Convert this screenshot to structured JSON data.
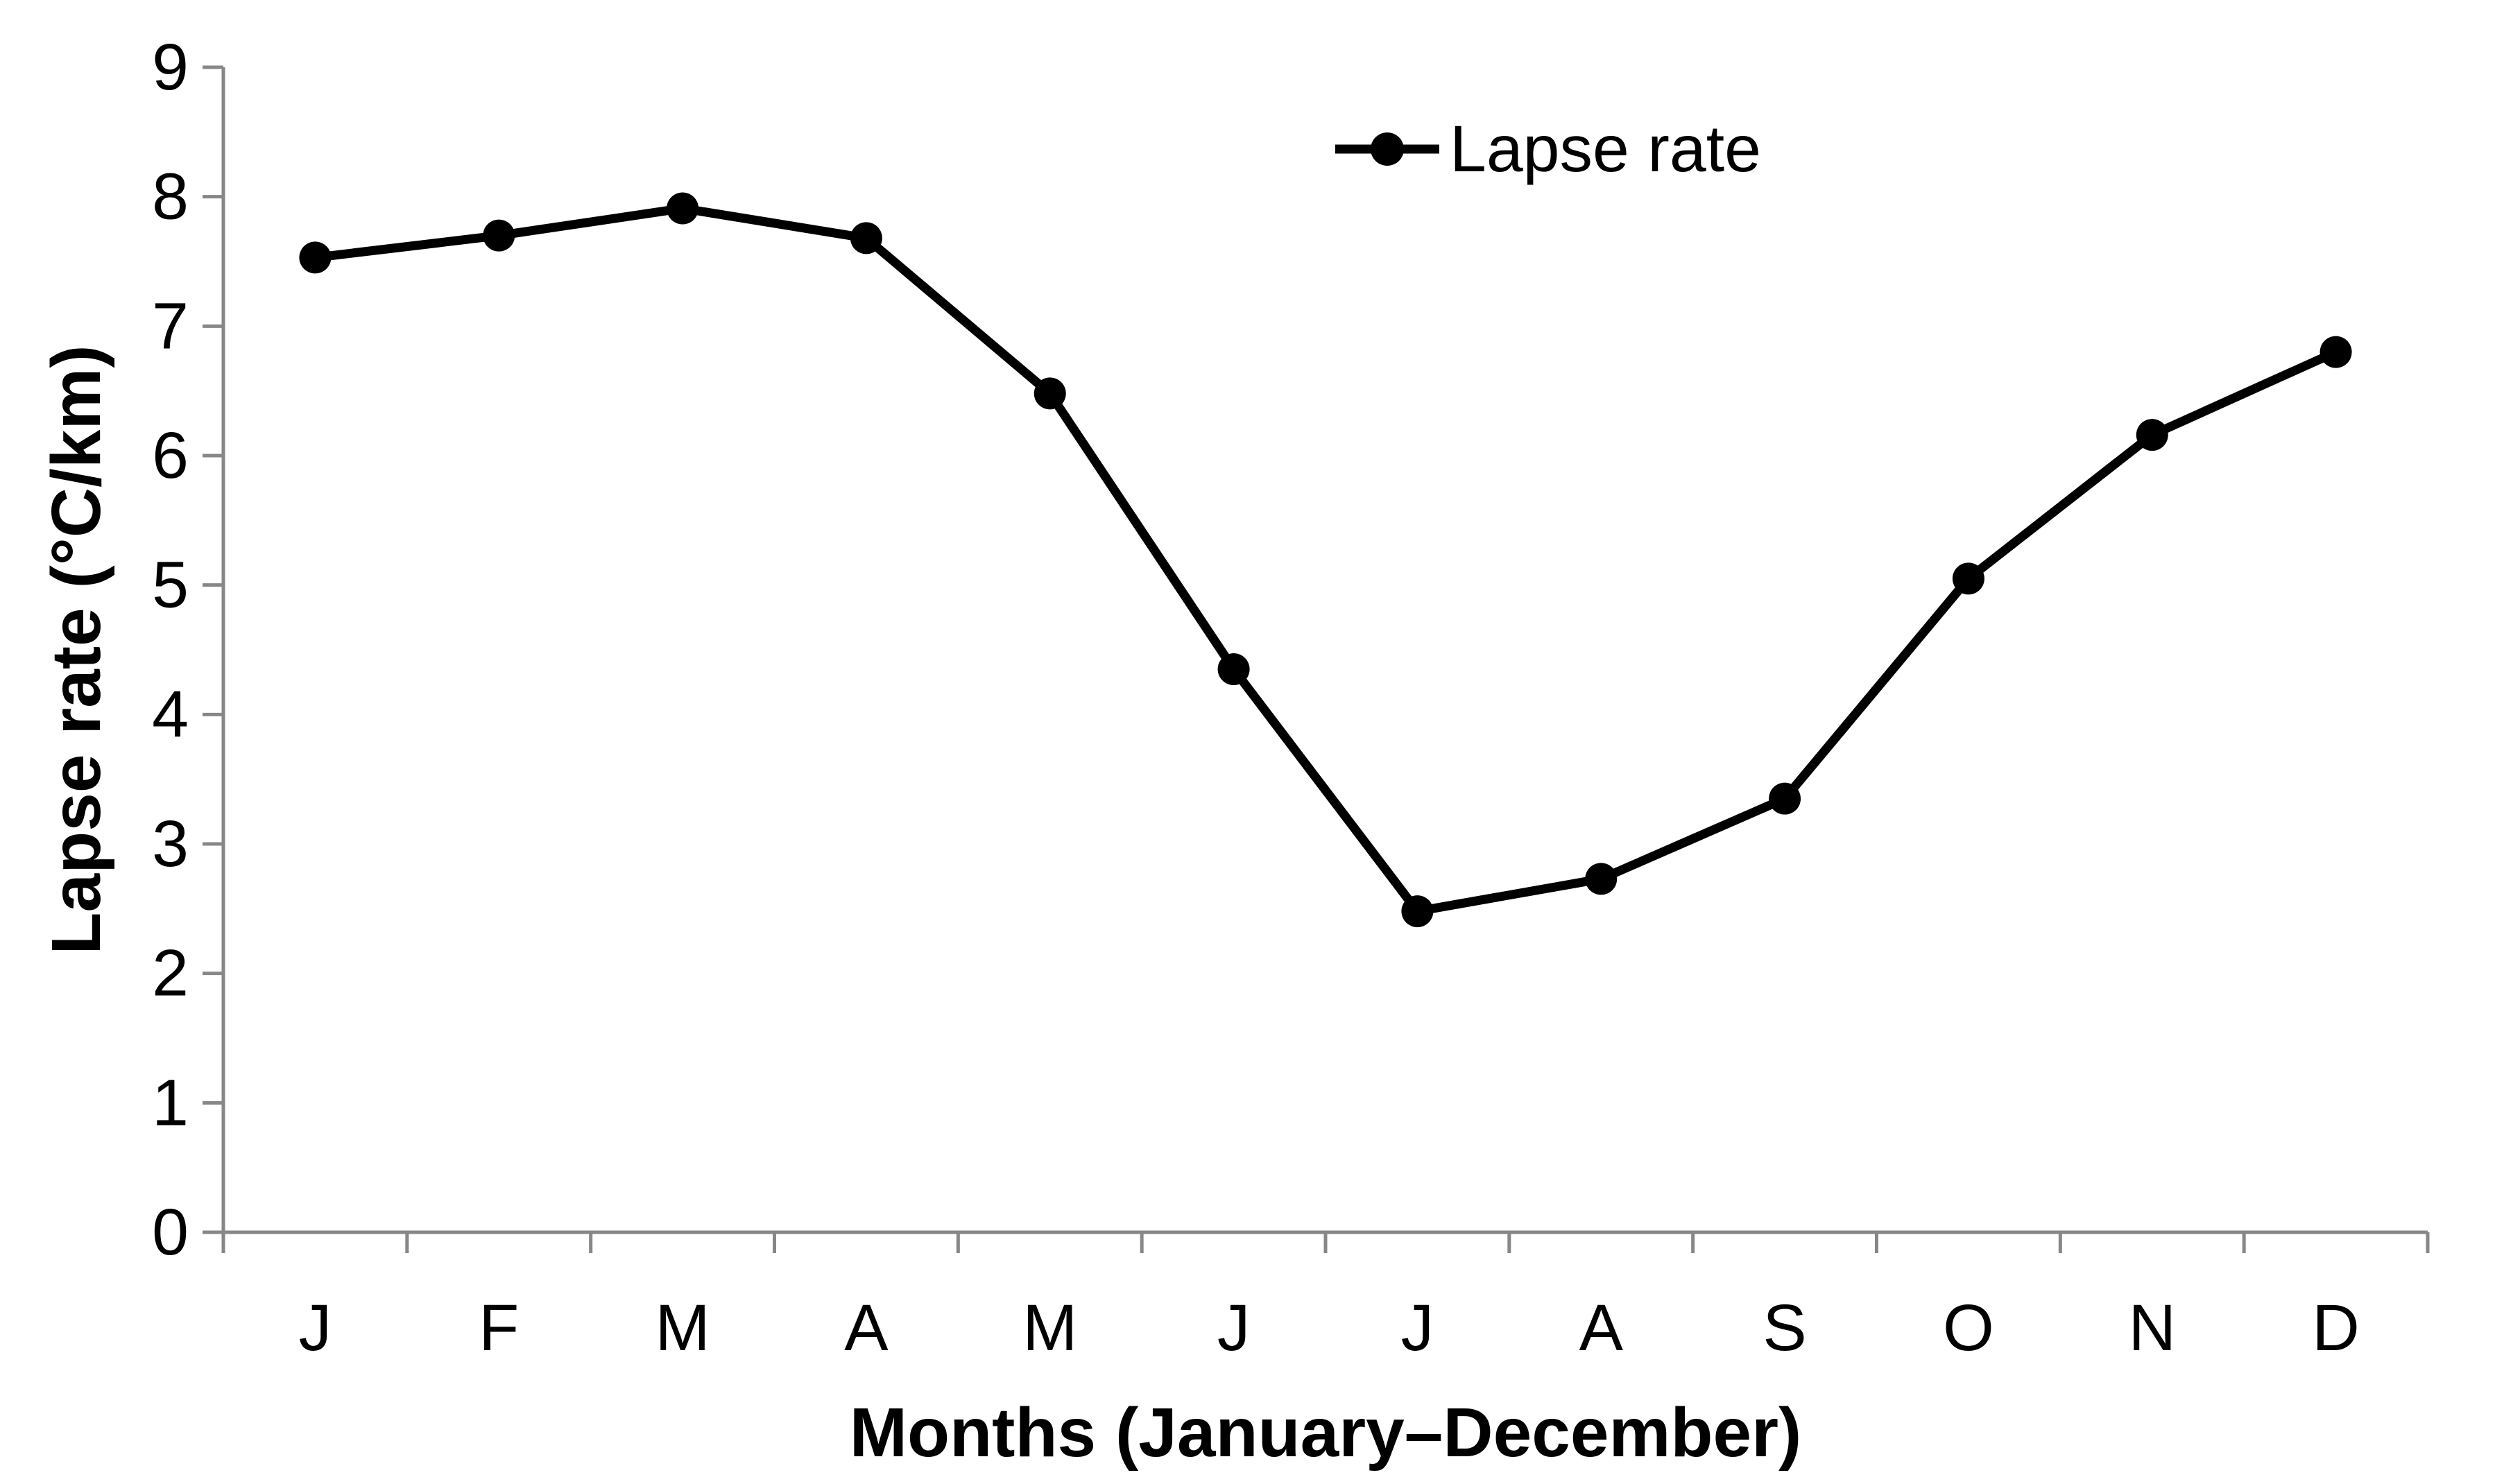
{
  "chart_data": {
    "type": "line",
    "title": "",
    "categories": [
      "J",
      "F",
      "M",
      "A",
      "M",
      "J",
      "J",
      "A",
      "S",
      "O",
      "N",
      "D"
    ],
    "series": [
      {
        "name": "Lapse rate",
        "values": [
          7.53,
          7.7,
          7.91,
          7.68,
          6.48,
          4.35,
          2.48,
          2.73,
          3.35,
          5.05,
          6.16,
          6.8
        ]
      }
    ],
    "xlabel": "Months (January–December)",
    "ylabel": "Lapse rate (°C/km)",
    "ylim": [
      0,
      9
    ],
    "yticks": [
      0,
      1,
      2,
      3,
      4,
      5,
      6,
      7,
      8,
      9
    ],
    "grid": false,
    "legend_position": "top-center",
    "marker": "circle",
    "colors": {
      "series": "#000000",
      "axis": "#878787",
      "text": "#000000",
      "background": "#ffffff"
    }
  }
}
